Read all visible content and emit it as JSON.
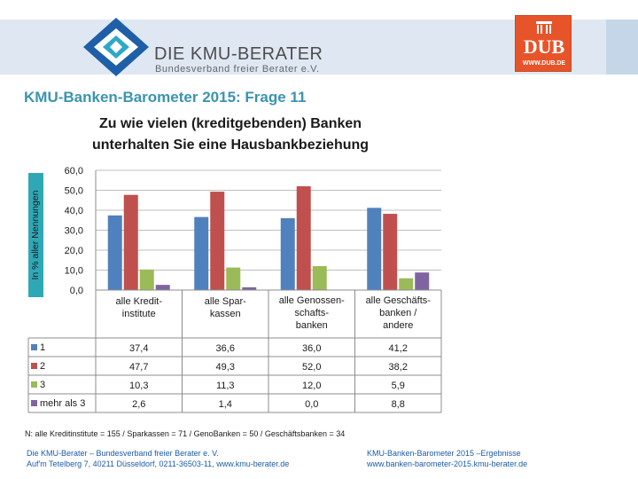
{
  "header": {
    "logo_title": "DIE KMU-BERATER",
    "logo_subtitle": "Bundesverband freier Berater e.V.",
    "dub_text": "DUB",
    "dub_url": "WWW.DUB.DE"
  },
  "page_title": "KMU-Banken-Barometer 2015: Frage 11",
  "colors": {
    "series_1": "#4f81bd",
    "series_2": "#c0504d",
    "series_3": "#9bbb59",
    "series_4": "#8064a2",
    "accent_title": "#3a94b0",
    "ylabel_bg": "#2fa8b6"
  },
  "chart_data": {
    "type": "bar",
    "title_lines": [
      "Zu wie vielen (kreditgebenden) Banken",
      "unterhalten Sie eine Hausbankbeziehung"
    ],
    "ylabel": "In % aller Nennungen",
    "ylim": [
      0,
      60
    ],
    "yticks": [
      "60,0",
      "50,0",
      "40,0",
      "30,0",
      "20,0",
      "10,0",
      "0,0"
    ],
    "ytick_values": [
      60,
      50,
      40,
      30,
      20,
      10,
      0
    ],
    "grid": true,
    "categories": [
      [
        "alle Kredit-",
        "institute"
      ],
      [
        "alle Spar-",
        "kassen"
      ],
      [
        "alle Genossen-",
        "schafts-",
        "banken"
      ],
      [
        "alle Geschäfts-",
        "banken /",
        "andere"
      ]
    ],
    "series": [
      {
        "name": "1",
        "values": [
          37.4,
          36.6,
          36.0,
          41.2
        ],
        "labels": [
          "37,4",
          "36,6",
          "36,0",
          "41,2"
        ]
      },
      {
        "name": "2",
        "values": [
          47.7,
          49.3,
          52.0,
          38.2
        ],
        "labels": [
          "47,7",
          "49,3",
          "52,0",
          "38,2"
        ]
      },
      {
        "name": "3",
        "values": [
          10.3,
          11.3,
          12.0,
          5.9
        ],
        "labels": [
          "10,3",
          "11,3",
          "12,0",
          "5,9"
        ]
      },
      {
        "name": "mehr als 3",
        "values": [
          2.6,
          1.4,
          0.0,
          8.8
        ],
        "labels": [
          "2,6",
          "1,4",
          "0,0",
          "8,8"
        ]
      }
    ]
  },
  "footnote": "N: alle Kreditinstitute = 155  /  Sparkassen = 71  /  GenoBanken = 50   /  Geschäftsbanken = 34",
  "footer": {
    "left_line1": "Die KMU-Berater – Bundesverband freier Berater e. V.",
    "left_line2": "Auf'm Tetelberg 7, 40211 Düsseldorf, 0211-36503-11, www.kmu-berater.de",
    "right_line1": "KMU-Banken-Barometer 2015 –Ergebnisse",
    "right_line2": "www.banken-barometer-2015.kmu-berater.de"
  }
}
